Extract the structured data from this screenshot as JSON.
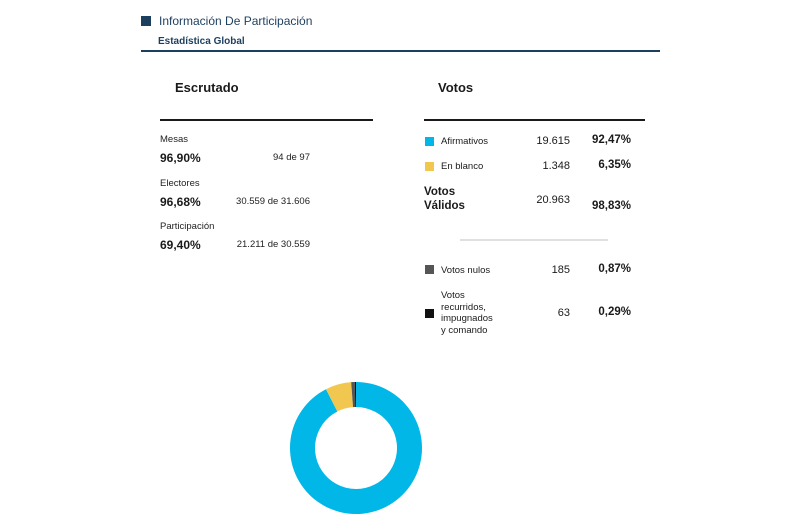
{
  "header": {
    "title": "Información De Participación",
    "subtitle": "Estadística Global",
    "accent_color": "#1d3f5e"
  },
  "escrutado": {
    "title": "Escrutado",
    "stats": [
      {
        "label": "Mesas",
        "percent": "96,90%",
        "detail": "94 de 97"
      },
      {
        "label": "Electores",
        "percent": "96,68%",
        "detail": "30.559 de 31.606"
      },
      {
        "label": "Participación",
        "percent": "69,40%",
        "detail": "21.211 de 30.559"
      }
    ]
  },
  "votos": {
    "title": "Votos",
    "afirmativos": {
      "label": "Afirmativos",
      "count": "19.615",
      "percent": "92,47%",
      "color": "#00b7e8"
    },
    "en_blanco": {
      "label": "En blanco",
      "count": "1.348",
      "percent": "6,35%",
      "color": "#f2c750"
    },
    "validos": {
      "label_line1": "Votos",
      "label_line2": "Válidos",
      "count": "20.963",
      "percent": "98,83%"
    },
    "nulos": {
      "label": "Votos nulos",
      "count": "185",
      "percent": "0,87%",
      "color": "#555555"
    },
    "recurridos": {
      "label_lines": [
        "Votos",
        "recurridos,",
        "impugnados",
        "y comando"
      ],
      "count": "63",
      "percent": "0,29%",
      "color": "#111111"
    }
  },
  "chart_data": {
    "type": "pie",
    "style": "donut",
    "categories": [
      "Afirmativos",
      "En blanco",
      "Votos nulos",
      "Votos recurridos, impugnados y comando"
    ],
    "values": [
      92.47,
      6.35,
      0.87,
      0.29
    ],
    "colors": [
      "#00b7e8",
      "#f2c750",
      "#555555",
      "#111111"
    ]
  }
}
